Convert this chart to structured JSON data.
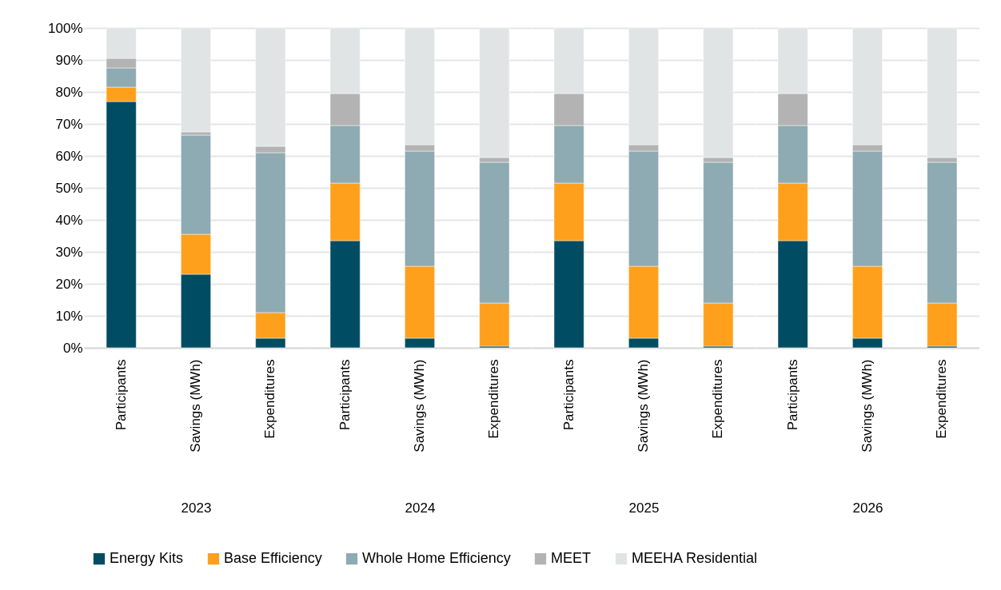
{
  "chart_data": [
    {
      "type": "bar",
      "stacked": true,
      "xlabel": "2023",
      "categories": [
        "Participants",
        "Savings (MWh)",
        "Expenditures"
      ],
      "ylim": [
        0,
        100
      ],
      "yticks": [
        {
          "value": 0,
          "label": "0%"
        },
        {
          "value": 10,
          "label": "10%"
        },
        {
          "value": 20,
          "label": "20%"
        },
        {
          "value": 30,
          "label": "30%"
        },
        {
          "value": 40,
          "label": "40%"
        },
        {
          "value": 50,
          "label": "50%"
        },
        {
          "value": 60,
          "label": "60%"
        },
        {
          "value": 70,
          "label": "70%"
        },
        {
          "value": 80,
          "label": "80%"
        },
        {
          "value": 90,
          "label": "90%"
        },
        {
          "value": 100,
          "label": "100%"
        }
      ],
      "grid": "y",
      "legend": "bottom",
      "series": [
        {
          "name": "Energy Kits",
          "color": "#004c63",
          "values": [
            77,
            23,
            3
          ]
        },
        {
          "name": "Base Efficiency",
          "color": "#ffa01c",
          "values": [
            4.5,
            12.5,
            8
          ]
        },
        {
          "name": "Whole Home Efficiency",
          "color": "#8eaab2",
          "values": [
            6,
            31,
            50
          ]
        },
        {
          "name": "MEET",
          "color": "#b3b3b3",
          "values": [
            3,
            1,
            2
          ]
        },
        {
          "name": "MEEHA Residential",
          "color": "#e0e4e5",
          "values": [
            9.5,
            32.5,
            37
          ]
        }
      ]
    },
    {
      "type": "bar",
      "stacked": true,
      "xlabel": "2024",
      "categories": [
        "Participants",
        "Savings (MWh)",
        "Expenditures"
      ],
      "ylim": [
        0,
        100
      ],
      "yticks": [
        0,
        10,
        20,
        30,
        40,
        50,
        60,
        70,
        80,
        90,
        100
      ],
      "tick_labels": "x",
      "grid": "y",
      "series": [
        {
          "color": "#004c63",
          "values": [
            33.5,
            3,
            0.5
          ]
        },
        {
          "color": "#ffa01c",
          "values": [
            18,
            22.5,
            13.5
          ]
        },
        {
          "color": "#8eaab2",
          "values": [
            18,
            36,
            44
          ]
        },
        {
          "color": "#b3b3b3",
          "values": [
            10,
            2,
            1.5
          ]
        },
        {
          "color": "#e0e4e5",
          "values": [
            20.5,
            36.5,
            40.5
          ]
        }
      ]
    },
    {
      "type": "bar",
      "stacked": true,
      "xlabel": "2025",
      "categories": [
        "Participants",
        "Savings (MWh)",
        "Expenditures"
      ],
      "ylim": [
        0,
        100
      ],
      "yticks": [
        0,
        10,
        20,
        30,
        40,
        50,
        60,
        70,
        80,
        90,
        100
      ],
      "tick_labels": "x",
      "grid": "y",
      "series": [
        {
          "color": "#004c63",
          "values": [
            33.5,
            3,
            0.5
          ]
        },
        {
          "color": "#ffa01c",
          "values": [
            18,
            22.5,
            13.5
          ]
        },
        {
          "color": "#8eaab2",
          "values": [
            18,
            36,
            44
          ]
        },
        {
          "color": "#b3b3b3",
          "values": [
            10,
            2,
            1.5
          ]
        },
        {
          "color": "#e0e4e5",
          "values": [
            20.5,
            36.5,
            40.5
          ]
        }
      ]
    },
    {
      "type": "bar",
      "stacked": true,
      "xlabel": "2026",
      "categories": [
        "Participants",
        "Savings (MWh)",
        "Expenditures"
      ],
      "ylim": [
        0,
        100
      ],
      "yticks": [
        0,
        10,
        20,
        30,
        40,
        50,
        60,
        70,
        80,
        90,
        100
      ],
      "tick_labels": "x",
      "grid": "y",
      "series": [
        {
          "color": "#004c63",
          "values": [
            33.5,
            3,
            0.5
          ]
        },
        {
          "color": "#ffa01c",
          "values": [
            18,
            22.5,
            13.5
          ]
        },
        {
          "color": "#8eaab2",
          "values": [
            18,
            36,
            44
          ]
        },
        {
          "color": "#b3b3b3",
          "values": [
            10,
            2,
            1.5
          ]
        },
        {
          "color": "#e0e4e5",
          "values": [
            20.5,
            36.5,
            40.5
          ]
        }
      ]
    }
  ]
}
